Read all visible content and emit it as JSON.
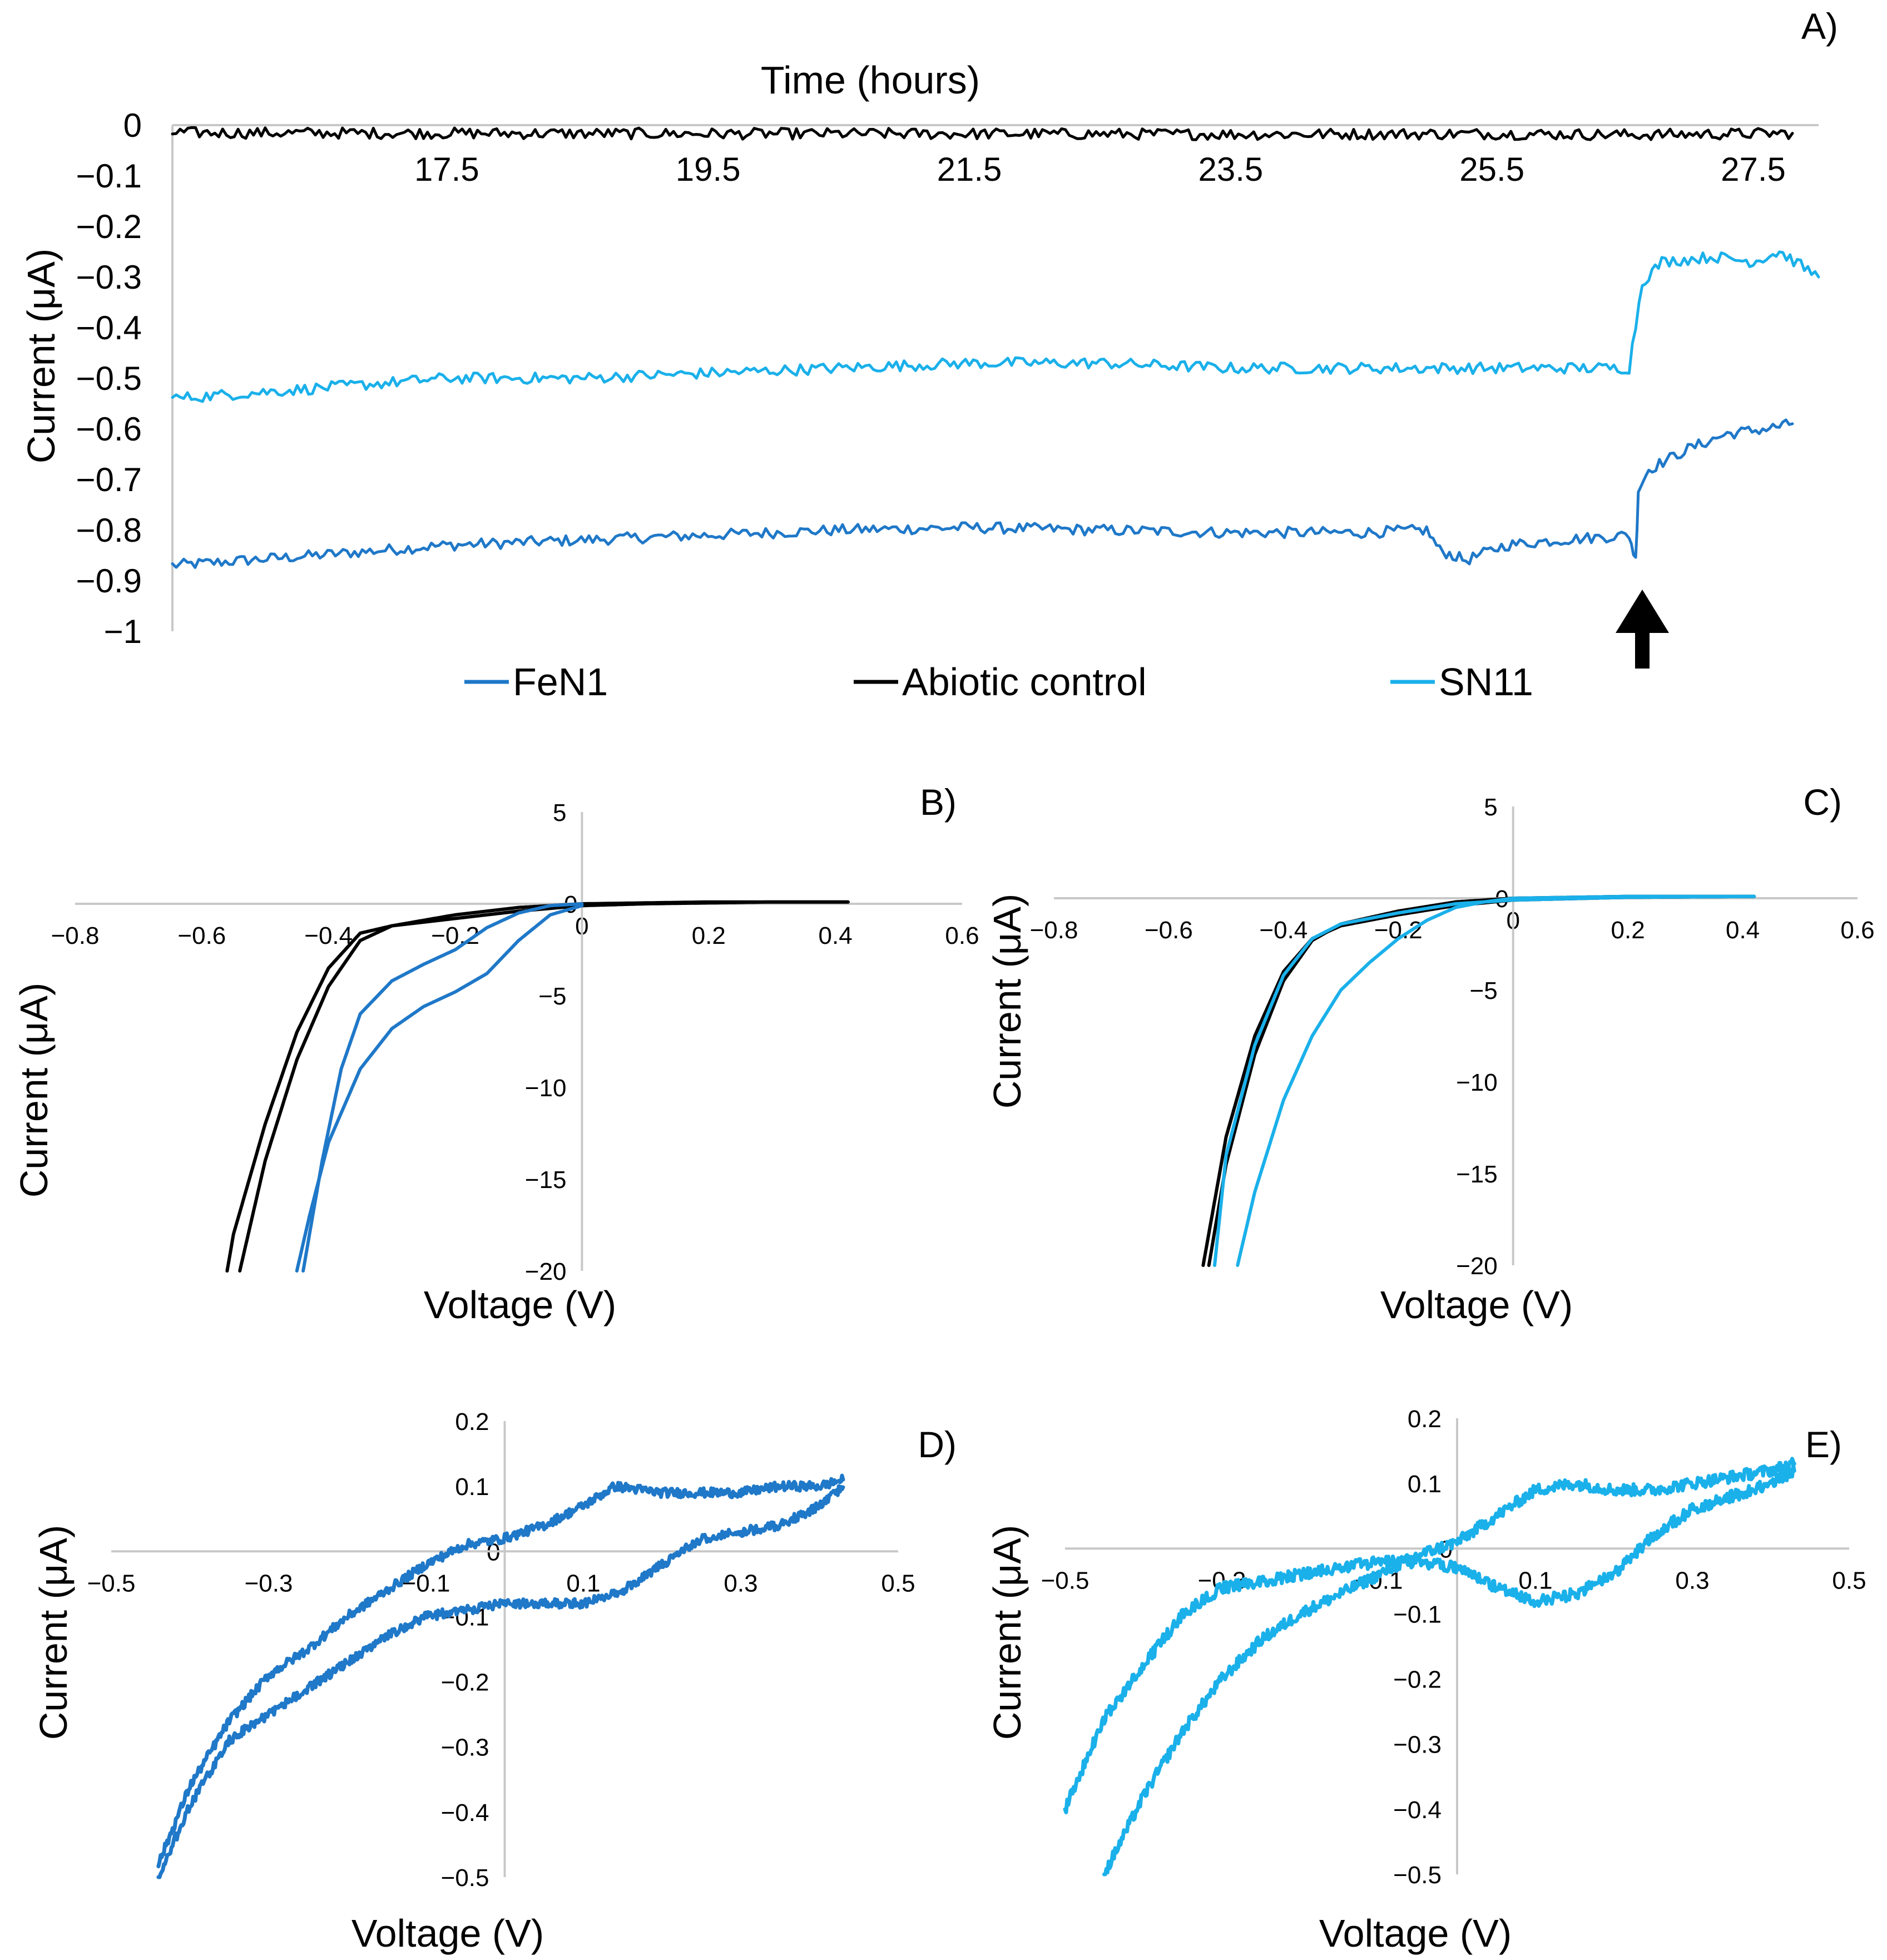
{
  "colors": {
    "FeN1": "#1f78c8",
    "Abiotic control": "#000000",
    "SN11": "#1ab0ea",
    "axis": "#c8c8c8",
    "arrow": "#000000"
  },
  "chart_data": [
    {
      "panel": "A)",
      "type": "line",
      "xlabel": "Time (hours)",
      "ylabel": "Current (μA)",
      "xlim": [
        15.4,
        28.0
      ],
      "ylim": [
        -1,
        0
      ],
      "xticks": [
        "17.5",
        "19.5",
        "21.5",
        "23.5",
        "25.5",
        "27.5"
      ],
      "yticks": [
        "0",
        "-0.1",
        "-0.2",
        "-0.3",
        "-0.4",
        "-0.5",
        "-0.6",
        "-0.7",
        "-0.8",
        "-0.9",
        "-1"
      ],
      "annotation": "arrow marking time 26.6 h",
      "annotation_x": 26.6,
      "legend": [
        "FeN1",
        "Abiotic control",
        "SN11"
      ],
      "series": [
        {
          "name": "FeN1",
          "x": [
            15.4,
            16.5,
            17.5,
            18.5,
            19.5,
            20.5,
            21.5,
            22.5,
            23.5,
            24.5,
            25.0,
            25.1,
            25.3,
            25.6,
            26.0,
            26.55,
            26.6,
            26.62,
            26.7,
            27.0,
            27.3,
            27.6,
            27.8
          ],
          "y": [
            -0.87,
            -0.85,
            -0.83,
            -0.82,
            -0.81,
            -0.8,
            -0.795,
            -0.8,
            -0.805,
            -0.805,
            -0.8,
            -0.84,
            -0.86,
            -0.83,
            -0.82,
            -0.81,
            -0.86,
            -0.72,
            -0.68,
            -0.64,
            -0.61,
            -0.6,
            -0.59
          ]
        },
        {
          "name": "Abiotic control",
          "x": [
            15.4,
            17.5,
            19.5,
            21.5,
            23.5,
            25.5,
            26.6,
            27.8
          ],
          "y": [
            -0.015,
            -0.016,
            -0.017,
            -0.017,
            -0.018,
            -0.017,
            -0.019,
            -0.016
          ]
        },
        {
          "name": "SN11",
          "x": [
            15.4,
            16.5,
            17.5,
            18.5,
            19.5,
            20.5,
            21.5,
            22.5,
            23.5,
            24.5,
            25.5,
            26.55,
            26.65,
            26.8,
            27.2,
            27.5,
            27.7,
            28.0
          ],
          "y": [
            -0.54,
            -0.52,
            -0.5,
            -0.5,
            -0.49,
            -0.48,
            -0.47,
            -0.47,
            -0.48,
            -0.48,
            -0.48,
            -0.48,
            -0.31,
            -0.27,
            -0.26,
            -0.27,
            -0.25,
            -0.3
          ]
        }
      ]
    },
    {
      "panel": "B)",
      "type": "line",
      "xlabel": "Voltage (V)",
      "ylabel": "Current (μA)",
      "xlim": [
        -0.8,
        0.6
      ],
      "ylim": [
        -20,
        5
      ],
      "xticks": [
        "-0.8",
        "-0.6",
        "-0.4",
        "-0.2",
        "0",
        "0.2",
        "0.4",
        "0.6"
      ],
      "yticks": [
        "5",
        "0",
        "-5",
        "-10",
        "-15",
        "-20"
      ],
      "series": [
        {
          "name": "Abiotic control",
          "x": [
            0.42,
            0.3,
            0.2,
            0.1,
            0.0,
            -0.1,
            -0.2,
            -0.3,
            -0.35,
            -0.4,
            -0.45,
            -0.5,
            -0.55,
            -0.56
          ],
          "y": [
            0.1,
            0.1,
            0.05,
            0.0,
            -0.1,
            -0.4,
            -0.8,
            -1.2,
            -1.6,
            -3.5,
            -7.0,
            -12.0,
            -18.0,
            -20.0
          ]
        },
        {
          "name": "Abiotic control",
          "x": [
            -0.54,
            -0.5,
            -0.45,
            -0.4,
            -0.35,
            -0.3,
            -0.2,
            -0.1,
            0.0,
            0.1,
            0.2,
            0.3,
            0.42
          ],
          "y": [
            -20.0,
            -14.0,
            -8.5,
            -4.5,
            -2.0,
            -1.2,
            -0.6,
            -0.2,
            0.0,
            0.05,
            0.1,
            0.1,
            0.1
          ]
        },
        {
          "name": "FeN1",
          "x": [
            0.0,
            -0.05,
            -0.1,
            -0.15,
            -0.2,
            -0.25,
            -0.3,
            -0.35,
            -0.4,
            -0.43,
            -0.45
          ],
          "y": [
            -0.1,
            -0.6,
            -2.0,
            -3.8,
            -4.8,
            -5.6,
            -6.8,
            -9.0,
            -13.0,
            -17.0,
            -20.0
          ]
        },
        {
          "name": "FeN1",
          "x": [
            -0.44,
            -0.41,
            -0.38,
            -0.35,
            -0.3,
            -0.25,
            -0.2,
            -0.15,
            -0.1,
            -0.05,
            0.0
          ],
          "y": [
            -20.0,
            -14.0,
            -9.0,
            -6.0,
            -4.2,
            -3.3,
            -2.5,
            -1.3,
            -0.5,
            -0.1,
            0.0
          ]
        }
      ]
    },
    {
      "panel": "C)",
      "type": "line",
      "xlabel": "Voltage (V)",
      "ylabel": "Current (μA)",
      "xlim": [
        -0.8,
        0.6
      ],
      "ylim": [
        -20,
        5
      ],
      "xticks": [
        "-0.8",
        "-0.6",
        "-0.4",
        "-0.2",
        "0",
        "0.2",
        "0.4",
        "0.6"
      ],
      "yticks": [
        "5",
        "0",
        "-5",
        "-10",
        "-15",
        "-20"
      ],
      "series": [
        {
          "name": "Abiotic control",
          "x": [
            0.42,
            0.2,
            0.0,
            -0.1,
            -0.2,
            -0.3,
            -0.35,
            -0.4,
            -0.45,
            -0.5,
            -0.52,
            -0.54
          ],
          "y": [
            0.1,
            0.05,
            -0.1,
            -0.4,
            -0.9,
            -1.5,
            -2.2,
            -4.0,
            -7.5,
            -13.0,
            -16.5,
            -20.0
          ]
        },
        {
          "name": "Abiotic control",
          "x": [
            -0.53,
            -0.5,
            -0.45,
            -0.4,
            -0.35,
            -0.3,
            -0.2,
            -0.1,
            0.0,
            0.2,
            0.42
          ],
          "y": [
            -20.0,
            -14.5,
            -8.5,
            -4.5,
            -2.3,
            -1.4,
            -0.7,
            -0.2,
            0.0,
            0.1,
            0.1
          ]
        },
        {
          "name": "SN11",
          "x": [
            0.42,
            0.2,
            0.0,
            -0.1,
            -0.2,
            -0.3,
            -0.35,
            -0.4,
            -0.45,
            -0.5,
            -0.52
          ],
          "y": [
            0.1,
            0.05,
            -0.1,
            -0.3,
            -0.8,
            -1.4,
            -2.2,
            -4.2,
            -8.0,
            -14.0,
            -20.0
          ]
        },
        {
          "name": "SN11",
          "x": [
            -0.48,
            -0.45,
            -0.4,
            -0.35,
            -0.3,
            -0.25,
            -0.2,
            -0.15,
            -0.1,
            -0.05,
            0.0,
            0.2,
            0.42
          ],
          "y": [
            -20.0,
            -16.0,
            -11.0,
            -7.5,
            -5.0,
            -3.5,
            -2.2,
            -1.2,
            -0.5,
            -0.2,
            0.0,
            0.1,
            0.1
          ]
        }
      ]
    },
    {
      "panel": "D)",
      "type": "line",
      "xlabel": "Voltage (V)",
      "ylabel": "Current (μA)",
      "xlim": [
        -0.5,
        0.5
      ],
      "ylim": [
        -0.5,
        0.2
      ],
      "xticks": [
        "-0.5",
        "-0.3",
        "-0.1",
        "0.1",
        "0.3",
        "0.5"
      ],
      "yticks": [
        "0.2",
        "0.1",
        "0",
        "-0.1",
        "-0.2",
        "-0.3",
        "-0.4",
        "-0.5"
      ],
      "series": [
        {
          "name": "FeN1",
          "x": [
            0.43,
            0.4,
            0.35,
            0.3,
            0.25,
            0.2,
            0.15,
            0.1,
            0.05,
            0.0,
            -0.05,
            -0.1,
            -0.15,
            -0.2,
            -0.25,
            -0.3,
            -0.35,
            -0.4,
            -0.44
          ],
          "y": [
            0.1,
            0.07,
            0.04,
            0.03,
            0.02,
            -0.02,
            -0.06,
            -0.08,
            -0.08,
            -0.08,
            -0.09,
            -0.1,
            -0.13,
            -0.17,
            -0.21,
            -0.25,
            -0.29,
            -0.39,
            -0.5
          ]
        },
        {
          "name": "FeN1",
          "x": [
            -0.44,
            -0.4,
            -0.35,
            -0.3,
            -0.25,
            -0.2,
            -0.15,
            -0.1,
            -0.05,
            0.0,
            0.05,
            0.1,
            0.14,
            0.2,
            0.25,
            0.3,
            0.35,
            0.4,
            0.43
          ],
          "y": [
            -0.48,
            -0.36,
            -0.26,
            -0.19,
            -0.15,
            -0.1,
            -0.06,
            -0.02,
            0.01,
            0.02,
            0.04,
            0.07,
            0.1,
            0.09,
            0.09,
            0.09,
            0.1,
            0.1,
            0.11
          ]
        }
      ]
    },
    {
      "panel": "E)",
      "type": "line",
      "xlabel": "Voltage (V)",
      "ylabel": "Current (μA)",
      "xlim": [
        -0.5,
        0.5
      ],
      "ylim": [
        -0.5,
        0.2
      ],
      "xticks": [
        "-0.5",
        "-0.3",
        "-0.1",
        "0.1",
        "0.3",
        "0.5"
      ],
      "yticks": [
        "0.2",
        "0.1",
        "0",
        "-0.1",
        "-0.2",
        "-0.3",
        "-0.4",
        "-0.5"
      ],
      "series": [
        {
          "name": "SN11",
          "x": [
            0.43,
            0.4,
            0.35,
            0.3,
            0.25,
            0.2,
            0.15,
            0.1,
            0.05,
            0.0,
            -0.05,
            -0.1,
            -0.15,
            -0.2,
            -0.25,
            -0.3,
            -0.35,
            -0.4,
            -0.45,
            -0.5
          ],
          "y": [
            0.12,
            0.1,
            0.08,
            0.06,
            0.02,
            -0.04,
            -0.07,
            -0.08,
            -0.06,
            -0.03,
            -0.02,
            -0.02,
            -0.03,
            -0.04,
            -0.05,
            -0.06,
            -0.1,
            -0.18,
            -0.26,
            -0.4
          ]
        },
        {
          "name": "SN11",
          "x": [
            -0.45,
            -0.4,
            -0.35,
            -0.3,
            -0.25,
            -0.2,
            -0.15,
            -0.1,
            -0.05,
            0.0,
            0.05,
            0.1,
            0.15,
            0.2,
            0.25,
            0.3,
            0.35,
            0.4,
            0.43
          ],
          "y": [
            -0.5,
            -0.38,
            -0.28,
            -0.2,
            -0.14,
            -0.1,
            -0.07,
            -0.04,
            -0.01,
            0.01,
            0.05,
            0.09,
            0.1,
            0.09,
            0.09,
            0.1,
            0.11,
            0.12,
            0.13
          ]
        }
      ]
    }
  ]
}
